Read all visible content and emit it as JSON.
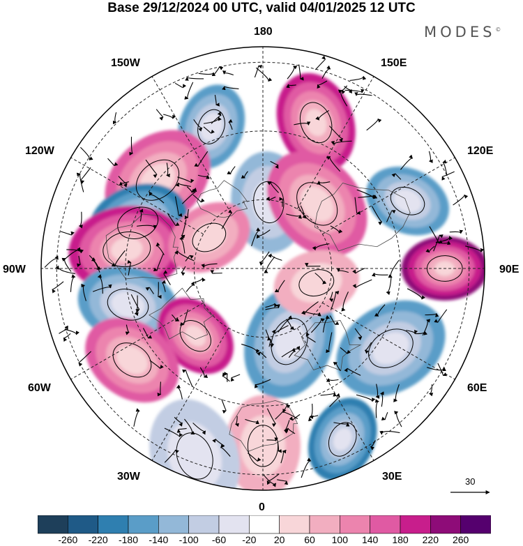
{
  "title": "Base 29/12/2024 00 UTC, valid 04/01/2025 12 UTC",
  "brand": "MODES",
  "brand_mark": "©",
  "longitude_labels": {
    "top": "180",
    "bottom": "0",
    "left": "90W",
    "right": "90E",
    "upper_left": "150W",
    "upper_left2": "120W",
    "lower_left": "60W",
    "lower_left2": "30W",
    "upper_right": "150E",
    "upper_right2": "120E",
    "lower_right": "60E",
    "lower_right2": "30E"
  },
  "vector_legend": {
    "value": "30"
  },
  "colorbar": {
    "ticks": [
      "-260",
      "-220",
      "-180",
      "-140",
      "-100",
      "-60",
      "-20",
      "20",
      "60",
      "100",
      "140",
      "180",
      "220",
      "260"
    ],
    "colors": [
      "#1e3f5a",
      "#1f5a87",
      "#2f7fb0",
      "#5a9dc8",
      "#93b8d8",
      "#c2cde3",
      "#e3e3f0",
      "#ffffff",
      "#f8d6d9",
      "#f2aec0",
      "#ec84ae",
      "#e05aa3",
      "#c81e8c",
      "#8e0c78",
      "#55006e"
    ]
  },
  "anomaly_centers": [
    {
      "lon": -160,
      "r": 0.68,
      "v": -150
    },
    {
      "lon": 160,
      "r": 0.7,
      "v": 190
    },
    {
      "lon": -130,
      "r": 0.62,
      "v": 170
    },
    {
      "lon": 115,
      "r": 0.72,
      "v": -180
    },
    {
      "lon": -110,
      "r": 0.6,
      "v": -190
    },
    {
      "lon": -98,
      "r": 0.62,
      "v": 200
    },
    {
      "lon": 90,
      "r": 0.82,
      "v": 260
    },
    {
      "lon": -75,
      "r": 0.63,
      "v": -160
    },
    {
      "lon": 58,
      "r": 0.68,
      "v": -170
    },
    {
      "lon": -45,
      "r": 0.43,
      "v": 220
    },
    {
      "lon": -55,
      "r": 0.72,
      "v": 160
    },
    {
      "lon": 20,
      "r": 0.35,
      "v": -160
    },
    {
      "lon": 25,
      "r": 0.85,
      "v": -190
    },
    {
      "lon": 175,
      "r": 0.3,
      "v": -140
    },
    {
      "lon": 140,
      "r": 0.38,
      "v": 170
    },
    {
      "lon": -120,
      "r": 0.28,
      "v": 110
    },
    {
      "lon": 0,
      "r": 0.8,
      "v": 90
    },
    {
      "lon": -20,
      "r": 0.9,
      "v": -100
    },
    {
      "lon": 75,
      "r": 0.25,
      "v": 100
    }
  ]
}
